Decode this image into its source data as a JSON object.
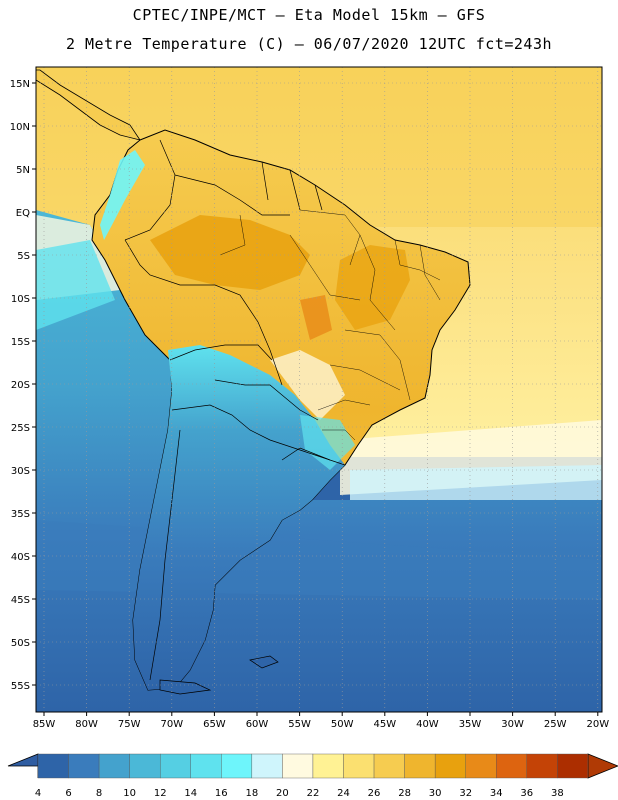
{
  "header": {
    "line1": "CPTEC/INPE/MCT –  Eta Model 15km – GFS",
    "line2": "2 Metre Temperature (C) – 06/07/2020 12UTC fct=243h"
  },
  "axes": {
    "lat_labels": [
      "15N",
      "10N",
      "5N",
      "EQ",
      "5S",
      "10S",
      "15S",
      "20S",
      "25S",
      "30S",
      "35S",
      "40S",
      "45S",
      "50S",
      "55S"
    ],
    "lon_labels": [
      "85W",
      "80W",
      "75W",
      "70W",
      "65W",
      "60W",
      "55W",
      "50W",
      "45W",
      "40W",
      "35W",
      "30W",
      "25W",
      "20W"
    ]
  },
  "colorbar": {
    "labels": [
      "4",
      "6",
      "8",
      "10",
      "12",
      "14",
      "16",
      "18",
      "20",
      "22",
      "24",
      "26",
      "28",
      "30",
      "32",
      "34",
      "36",
      "38"
    ],
    "colors": [
      "#2e64a8",
      "#3a7cbc",
      "#44a2cd",
      "#4bb8d7",
      "#55cfe3",
      "#5fe2ee",
      "#6ef5fb",
      "#cff5fc",
      "#fffae0",
      "#fff294",
      "#fbe070",
      "#f6cc50",
      "#efb52e",
      "#e8a10e",
      "#e88a18",
      "#dd6410",
      "#c44306",
      "#ac2e00"
    ],
    "low_color": "#2f5da2",
    "high_color": "#b03a05"
  }
}
